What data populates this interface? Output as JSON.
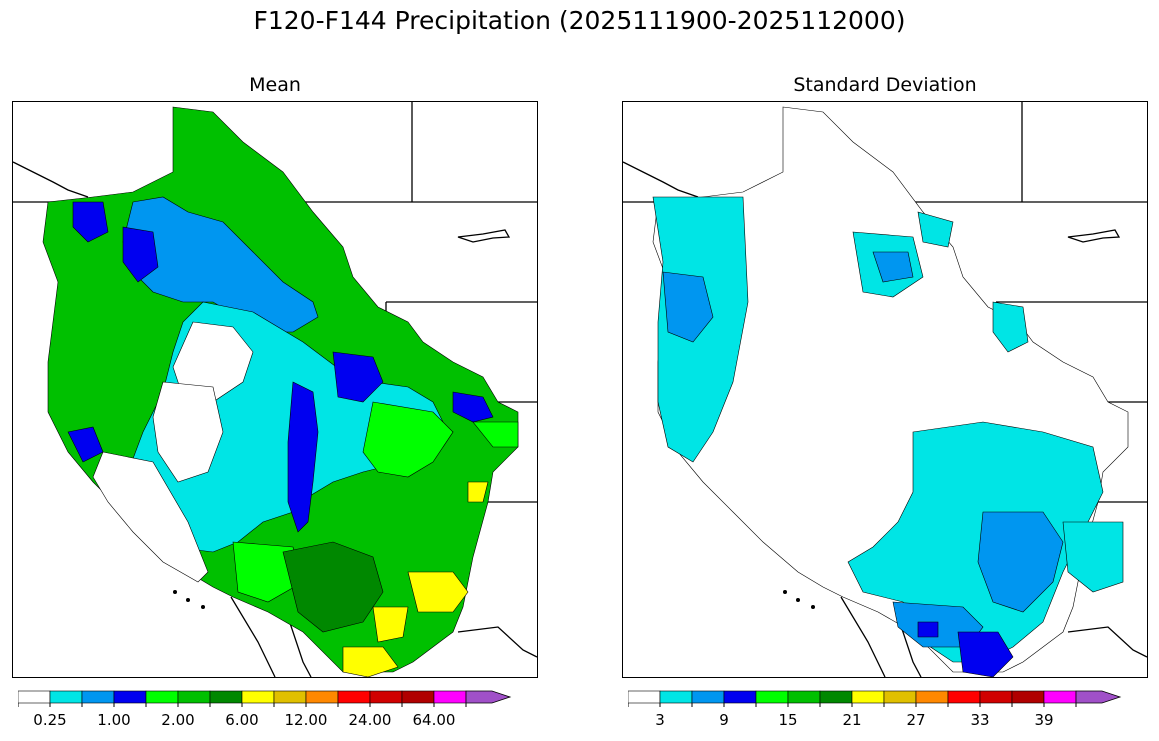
{
  "figure": {
    "title": "F120-F144 Precipitation (2025111900-2025112000)"
  },
  "panels": [
    {
      "title": "Mean",
      "colorbar": {
        "colors": [
          "#ffffff",
          "#00e5e5",
          "#0096f0",
          "#0000f0",
          "#00ff00",
          "#00c000",
          "#008800",
          "#ffff00",
          "#e0c000",
          "#ff8800",
          "#ff0000",
          "#d00000",
          "#b00000",
          "#ff00ff",
          "#a050c8"
        ],
        "tick_labels": [
          "0.25",
          "1.00",
          "2.00",
          "6.00",
          "12.00",
          "24.00",
          "64.00"
        ]
      }
    },
    {
      "title": "Standard Deviation",
      "colorbar": {
        "colors": [
          "#ffffff",
          "#00e5e5",
          "#0096f0",
          "#0000f0",
          "#00ff00",
          "#00c000",
          "#008800",
          "#ffff00",
          "#e0c000",
          "#ff8800",
          "#ff0000",
          "#d00000",
          "#b00000",
          "#ff00ff",
          "#a050c8"
        ],
        "tick_labels": [
          "3",
          "9",
          "15",
          "21",
          "27",
          "33",
          "39"
        ]
      }
    }
  ]
}
